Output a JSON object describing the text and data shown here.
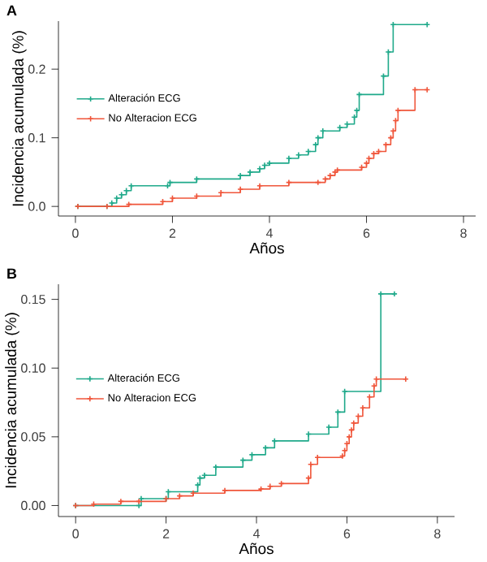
{
  "chart_data": [
    {
      "type": "step",
      "title": "A",
      "xlabel": "Años",
      "ylabel": "Incidencia acumulada (%)",
      "xlim": [
        -0.35,
        8.25
      ],
      "ylim": [
        -0.014,
        0.27
      ],
      "xticks": [
        0,
        2,
        4,
        6,
        8
      ],
      "yticks": [
        {
          "value": 0,
          "label": "0.0"
        },
        {
          "value": 0.1,
          "label": "0.1"
        },
        {
          "value": 0.2,
          "label": "0.2"
        }
      ],
      "legend": "left",
      "marker": "cross",
      "grid": false,
      "series": [
        {
          "name": "Alteración ECG",
          "color": "#1fa98a",
          "x": [
            0.05,
            0.65,
            0.75,
            0.85,
            0.95,
            1.05,
            1.15,
            1.9,
            1.95,
            2.5,
            3.4,
            3.6,
            3.8,
            3.9,
            4.0,
            4.4,
            4.6,
            4.8,
            4.95,
            5.0,
            5.1,
            5.45,
            5.6,
            5.75,
            5.8,
            5.85,
            6.35,
            6.45,
            6.55,
            7.25
          ],
          "values": [
            0,
            0,
            0.005,
            0.012,
            0.017,
            0.023,
            0.03,
            0.03,
            0.035,
            0.04,
            0.045,
            0.05,
            0.055,
            0.06,
            0.063,
            0.07,
            0.075,
            0.08,
            0.09,
            0.1,
            0.11,
            0.115,
            0.12,
            0.13,
            0.14,
            0.163,
            0.19,
            0.225,
            0.265,
            0.265
          ]
        },
        {
          "name": "No Alteracion ECG",
          "color": "#f0553a",
          "x": [
            0.05,
            0.65,
            1.1,
            1.8,
            2.0,
            2.5,
            3.0,
            3.4,
            3.8,
            4.4,
            5.0,
            5.15,
            5.25,
            5.35,
            5.4,
            5.9,
            6.0,
            6.05,
            6.15,
            6.25,
            6.4,
            6.5,
            6.55,
            6.6,
            6.65,
            7.0,
            7.25
          ],
          "values": [
            0,
            0,
            0.003,
            0.007,
            0.012,
            0.015,
            0.02,
            0.025,
            0.03,
            0.035,
            0.035,
            0.04,
            0.045,
            0.05,
            0.053,
            0.057,
            0.063,
            0.07,
            0.077,
            0.08,
            0.09,
            0.1,
            0.11,
            0.125,
            0.14,
            0.17,
            0.17
          ]
        }
      ]
    },
    {
      "type": "step",
      "title": "B",
      "xlabel": "Años",
      "ylabel": "Incidencia acumulada (%)",
      "xlim": [
        -0.38,
        8.38
      ],
      "ylim": [
        -0.008,
        0.161
      ],
      "xticks": [
        0,
        2,
        4,
        6,
        8
      ],
      "yticks": [
        {
          "value": 0,
          "label": "0.00"
        },
        {
          "value": 0.05,
          "label": "0.05"
        },
        {
          "value": 0.1,
          "label": "0.10"
        },
        {
          "value": 0.15,
          "label": "0.15"
        }
      ],
      "legend": "left",
      "marker": "cross",
      "grid": false,
      "series": [
        {
          "name": "Alteración ECG",
          "color": "#1fa98a",
          "x": [
            0,
            1.4,
            1.45,
            2.0,
            2.05,
            2.7,
            2.75,
            2.85,
            3.1,
            3.7,
            3.9,
            4.2,
            4.4,
            5.15,
            5.6,
            5.8,
            5.95,
            6.75,
            7.05
          ],
          "values": [
            0,
            0,
            0.005,
            0.005,
            0.01,
            0.015,
            0.02,
            0.022,
            0.028,
            0.033,
            0.037,
            0.042,
            0.047,
            0.052,
            0.057,
            0.068,
            0.083,
            0.154,
            0.154
          ]
        },
        {
          "name": "No Alteracion ECG",
          "color": "#f0553a",
          "x": [
            0,
            0.4,
            1.0,
            1.4,
            2.0,
            2.3,
            2.6,
            3.3,
            4.1,
            4.3,
            4.55,
            5.15,
            5.2,
            5.35,
            5.9,
            5.95,
            6.0,
            6.05,
            6.1,
            6.15,
            6.25,
            6.35,
            6.5,
            6.6,
            6.65,
            7.3
          ],
          "values": [
            0,
            0.001,
            0.003,
            0.003,
            0.005,
            0.007,
            0.009,
            0.011,
            0.012,
            0.014,
            0.016,
            0.02,
            0.03,
            0.035,
            0.036,
            0.04,
            0.045,
            0.05,
            0.055,
            0.06,
            0.065,
            0.071,
            0.079,
            0.087,
            0.092,
            0.092
          ]
        }
      ]
    }
  ]
}
